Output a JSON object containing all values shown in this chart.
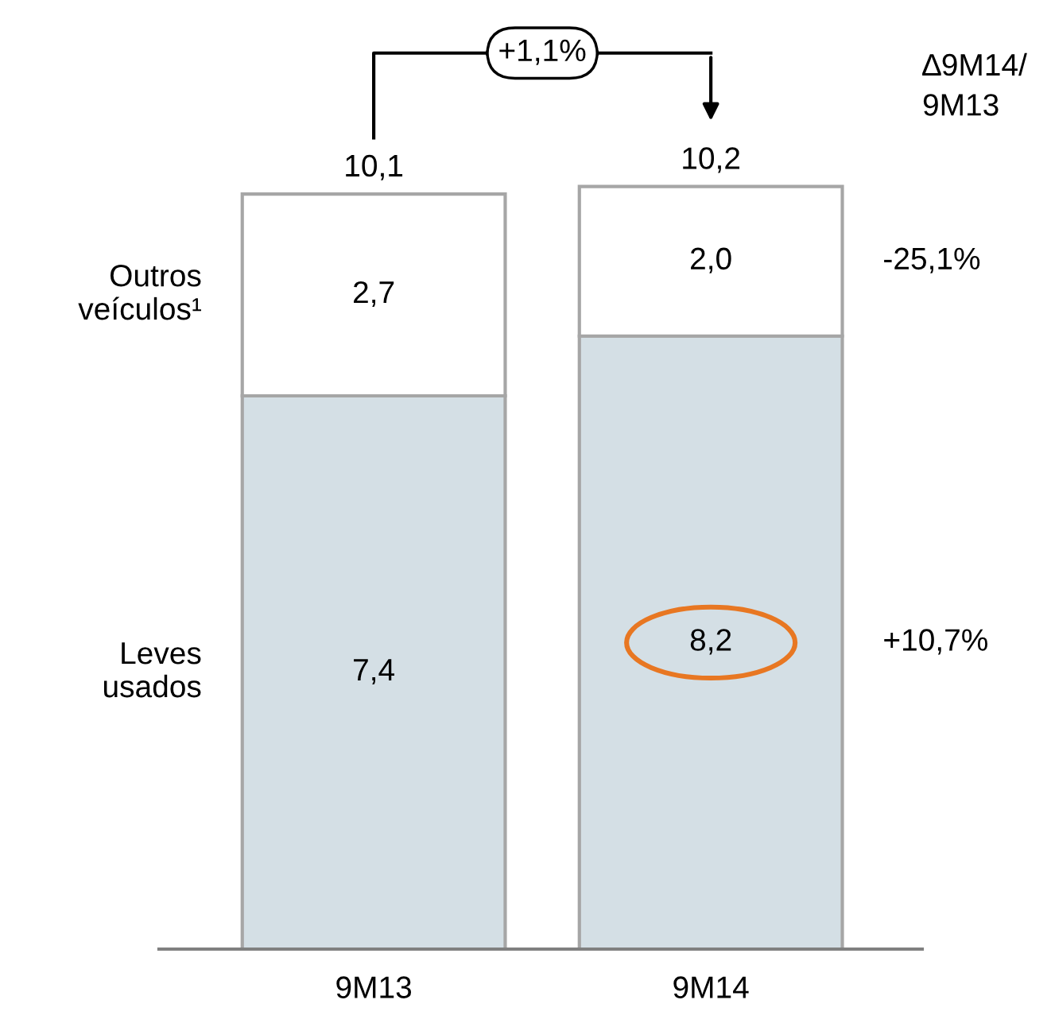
{
  "chart_data": {
    "type": "bar",
    "stacked": true,
    "categories": [
      "9M13",
      "9M14"
    ],
    "series": [
      {
        "name": "Leves\nusados",
        "color": "#d4dfe5",
        "values": [
          7.4,
          8.2
        ],
        "value_labels": [
          "7,4",
          "8,2"
        ]
      },
      {
        "name": "Outros\nveículos¹",
        "color": "#ffffff",
        "values": [
          2.7,
          2.0
        ],
        "value_labels": [
          "2,7",
          "2,0"
        ]
      }
    ],
    "totals": [
      "10,1",
      "10,2"
    ],
    "annotations": [
      "+1,1%",
      "∆9M14/\n9M13",
      "+10,7%",
      "-25,1%"
    ],
    "grid": false
  }
}
